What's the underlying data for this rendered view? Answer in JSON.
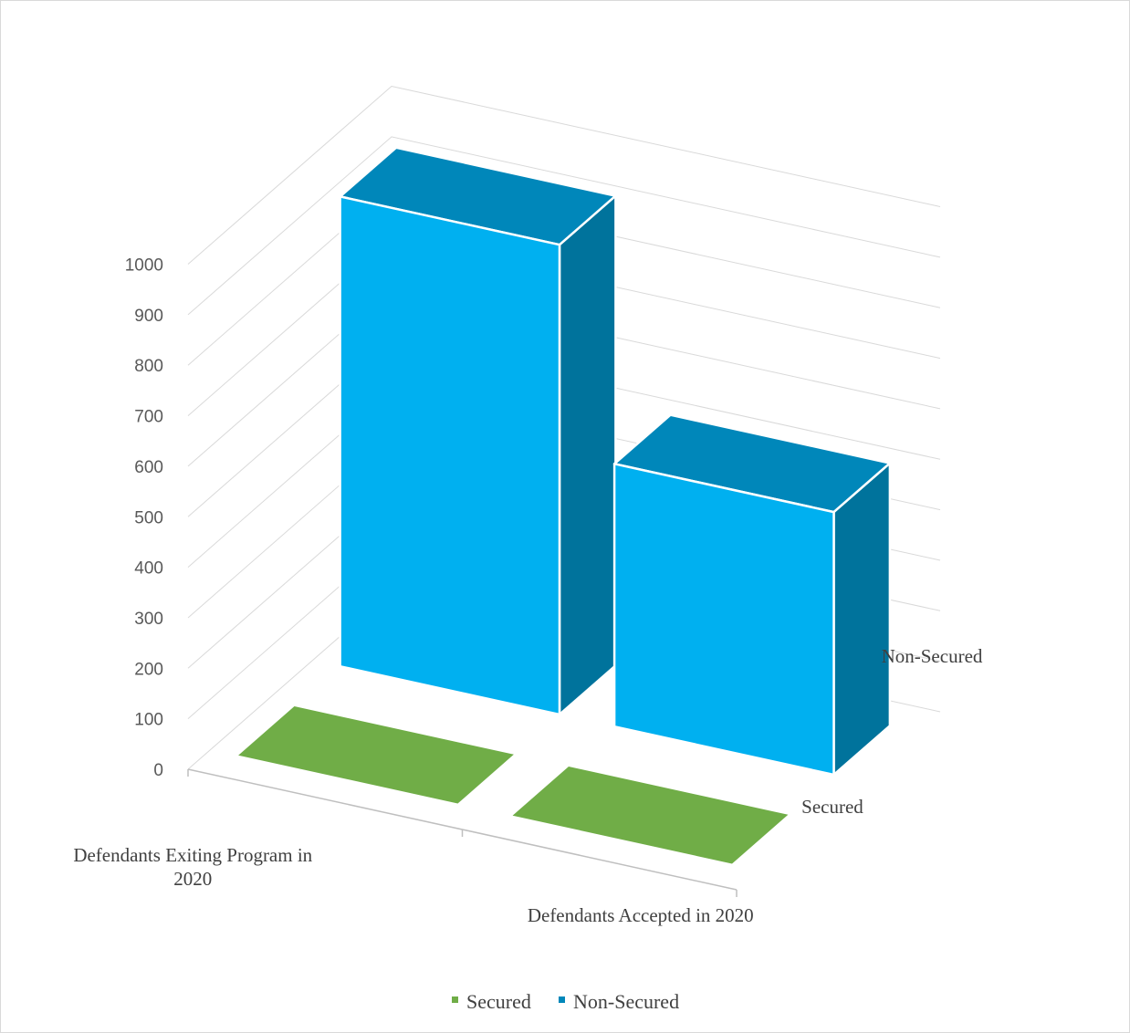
{
  "chart_data": {
    "type": "bar",
    "subtype": "3d-column",
    "categories": [
      "Defendants Exiting Program in 2020",
      "Defendants Accepted in 2020"
    ],
    "series": [
      {
        "name": "Secured",
        "values": [
          0,
          0
        ],
        "color": "#70AD47"
      },
      {
        "name": "Non-Secured",
        "values": [
          930,
          520
        ],
        "color": "#00B0F0"
      }
    ],
    "y_ticks": [
      "0",
      "100",
      "200",
      "300",
      "400",
      "500",
      "600",
      "700",
      "800",
      "900",
      "1000"
    ],
    "category_labels": [
      {
        "lines": [
          "Defendants Exiting Program in",
          "2020"
        ]
      },
      {
        "lines": [
          "Defendants Accepted in 2020"
        ]
      }
    ],
    "series_axis_labels": [
      "Non-Secured",
      "Secured"
    ],
    "ylim": [
      0,
      1000
    ],
    "grid": true,
    "legend": {
      "placement": "bottom",
      "entries": [
        "Secured",
        "Non-Secured"
      ]
    }
  }
}
